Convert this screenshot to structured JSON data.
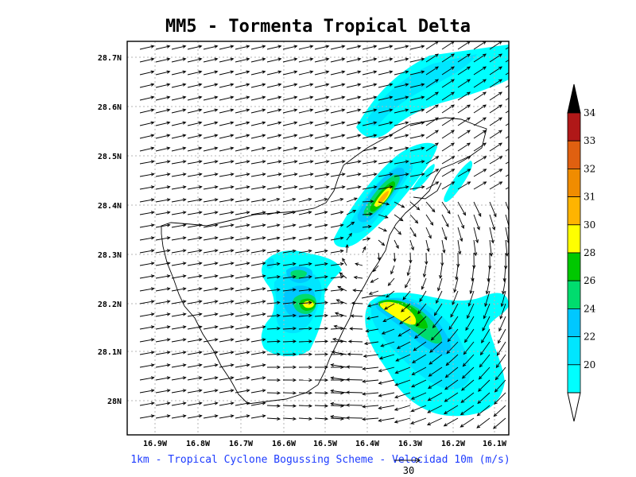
{
  "title": "MM5 - Tormenta Tropical Delta",
  "caption": "1km - Tropical Cyclone Bogussing Scheme - Velocidad 10m (m/s)",
  "reference_vector_label": "30",
  "axes": {
    "lat_labels": [
      "28.7N",
      "28.6N",
      "28.5N",
      "28.4N",
      "28.3N",
      "28.2N",
      "28.1N",
      "28N"
    ],
    "lon_labels": [
      "16.9W",
      "16.8W",
      "16.7W",
      "16.6W",
      "16.5W",
      "16.4W",
      "16.3W",
      "16.2W",
      "16.1W"
    ]
  },
  "colorbar": {
    "labels": [
      "34",
      "33",
      "32",
      "31",
      "30",
      "28",
      "26",
      "24",
      "22",
      "20"
    ],
    "colors": [
      "#b01818",
      "#e06010",
      "#f08c00",
      "#ffb400",
      "#ffff00",
      "#00c800",
      "#00dc6e",
      "#00c8ff",
      "#00e6ff",
      "#00ffff"
    ],
    "top_arrow_color": "#000000",
    "bottom_arrow_color": "#ffffff"
  },
  "wind_colors": {
    "c20": "#00ffff",
    "c22": "#00e6ff",
    "c24": "#00c8ff",
    "c26": "#00dc6e",
    "c28": "#00c800",
    "c30": "#ffff00",
    "c31": "#ffb400",
    "c32": "#f08c00"
  }
}
